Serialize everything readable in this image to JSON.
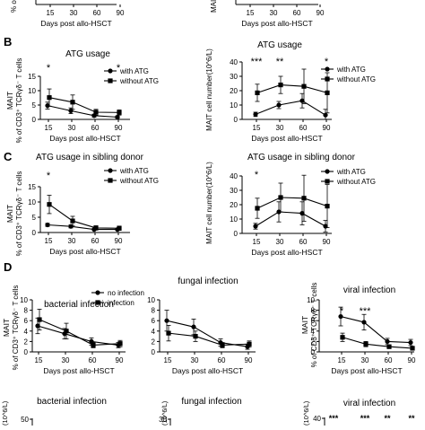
{
  "panel_labels": [
    "B",
    "C",
    "D"
  ],
  "common": {
    "x_label": "Days post allo-HSCT",
    "y_label_pct": "% of CD3⁺ TCRγδ⁻ T cells",
    "y_label_mait": "MAIT",
    "y_label_count": "MAIT cell number(10^6/L)"
  },
  "chart_data": [
    {
      "id": "top-left-partial",
      "type": "line",
      "title": "",
      "x": [
        15,
        30,
        60,
        90
      ],
      "xlabel": "Days post allo-HSCT",
      "ylabel": "% o",
      "series": []
    },
    {
      "id": "top-right-partial",
      "type": "line",
      "title": "",
      "x": [
        15,
        30,
        60,
        90
      ],
      "xlabel": "Days post allo-HSCT",
      "ylabel": "MAI",
      "series": []
    },
    {
      "id": "B-left",
      "type": "line",
      "title": "ATG usage",
      "x": [
        15,
        30,
        60,
        90
      ],
      "xlabel": "Days post allo-HSCT",
      "ylabel": "MAIT",
      "yticks": [
        0,
        5,
        10,
        15
      ],
      "ylim": [
        0,
        15
      ],
      "legend": [
        "with ATG",
        "without ATG"
      ],
      "legend_position": "top-right",
      "series": [
        {
          "name": "with ATG",
          "marker": "circle",
          "values": [
            4.8,
            3.0,
            1.3,
            0.8
          ],
          "err": [
            1.2,
            1.0,
            0.5,
            0.4
          ]
        },
        {
          "name": "without ATG",
          "marker": "square",
          "values": [
            7.6,
            6.0,
            2.5,
            2.4
          ],
          "err": [
            3.0,
            2.5,
            1.0,
            0.9
          ]
        }
      ],
      "annotations": [
        {
          "x": 15,
          "text": "*"
        },
        {
          "x": 90,
          "text": "*"
        }
      ]
    },
    {
      "id": "B-right",
      "type": "line",
      "title": "ATG usage",
      "x": [
        15,
        30,
        60,
        90
      ],
      "xlabel": "Days post allo-HSCT",
      "ylabel": "MAIT cell number(10^6/L)",
      "yticks": [
        0,
        10,
        20,
        30,
        40
      ],
      "ylim": [
        0,
        40
      ],
      "legend": [
        "with ATG",
        "without ATG"
      ],
      "legend_position": "top-right",
      "series": [
        {
          "name": "with ATG",
          "marker": "circle",
          "values": [
            3.5,
            10.0,
            13.0,
            3.0
          ],
          "err": [
            1.5,
            2.5,
            5.0,
            4.0
          ]
        },
        {
          "name": "without ATG",
          "marker": "square",
          "values": [
            18.5,
            24.0,
            23.0,
            18.5
          ],
          "err": [
            6.0,
            6.0,
            12.0,
            14.0
          ]
        }
      ],
      "annotations": [
        {
          "x": 15,
          "text": "***"
        },
        {
          "x": 30,
          "text": "**"
        },
        {
          "x": 90,
          "text": "*"
        }
      ]
    },
    {
      "id": "C-left",
      "type": "line",
      "title": "ATG usage in sibling donor",
      "x": [
        15,
        30,
        60,
        90
      ],
      "xlabel": "Days post allo-HSCT",
      "ylabel": "MAIT",
      "yticks": [
        0,
        5,
        10,
        15
      ],
      "ylim": [
        0,
        15
      ],
      "legend": [
        "with ATG",
        "without ATG"
      ],
      "legend_position": "top-right",
      "series": [
        {
          "name": "with ATG",
          "marker": "circle",
          "values": [
            2.5,
            2.0,
            1.0,
            1.0
          ],
          "err": [
            0.5,
            0.5,
            0.3,
            0.3
          ]
        },
        {
          "name": "without ATG",
          "marker": "square",
          "values": [
            9.2,
            3.8,
            1.5,
            1.4
          ],
          "err": [
            3.0,
            1.5,
            0.7,
            0.7
          ]
        }
      ],
      "annotations": [
        {
          "x": 15,
          "text": "*"
        }
      ]
    },
    {
      "id": "C-right",
      "type": "line",
      "title": "ATG usage in sibling donor",
      "x": [
        15,
        30,
        60,
        90
      ],
      "xlabel": "Days post allo-HSCT",
      "ylabel": "MAIT cell number(10^6/L)",
      "yticks": [
        0,
        10,
        20,
        30,
        40
      ],
      "ylim": [
        0,
        40
      ],
      "legend": [
        "with ATG",
        "without ATG"
      ],
      "legend_position": "top-right",
      "series": [
        {
          "name": "with ATG",
          "marker": "circle",
          "values": [
            5.0,
            15.0,
            14.0,
            5.0
          ],
          "err": [
            2.0,
            7.0,
            8.0,
            4.0
          ]
        },
        {
          "name": "without ATG",
          "marker": "square",
          "values": [
            17.5,
            25.0,
            24.5,
            19.0
          ],
          "err": [
            7.0,
            10.0,
            16.0,
            15.0
          ]
        }
      ],
      "annotations": [
        {
          "x": 15,
          "text": "*"
        }
      ]
    },
    {
      "id": "D-left",
      "type": "line",
      "title": "bacterial infection",
      "x": [
        15,
        30,
        60,
        90
      ],
      "xlabel": "Days post allo-HSCT",
      "ylabel": "MAIT",
      "yticks": [
        0,
        2,
        4,
        6,
        8,
        10
      ],
      "ylim": [
        0,
        10
      ],
      "legend": [
        "no infection",
        "infection"
      ],
      "legend_position": "top-right",
      "series": [
        {
          "name": "no infection",
          "marker": "circle",
          "values": [
            5.0,
            3.5,
            2.0,
            1.3
          ],
          "err": [
            1.5,
            1.0,
            0.7,
            0.5
          ]
        },
        {
          "name": "infection",
          "marker": "square",
          "values": [
            6.2,
            4.0,
            1.3,
            1.6
          ],
          "err": [
            2.0,
            1.5,
            0.5,
            0.6
          ]
        }
      ]
    },
    {
      "id": "D-middle",
      "type": "line",
      "title": "fungal infection",
      "x": [
        15,
        30,
        60,
        90
      ],
      "xlabel": "Days post allo-HSCT",
      "ylabel": "",
      "yticks": [
        0,
        2,
        4,
        6,
        8,
        10
      ],
      "ylim": [
        0,
        10
      ],
      "series": [
        {
          "name": "",
          "marker": "circle",
          "values": [
            6.0,
            4.8,
            1.8,
            1.0
          ],
          "err": [
            2.0,
            1.5,
            0.7,
            0.5
          ]
        },
        {
          "name": "",
          "marker": "square",
          "values": [
            3.6,
            3.0,
            1.3,
            1.5
          ],
          "err": [
            1.5,
            1.0,
            0.5,
            0.6
          ]
        }
      ]
    },
    {
      "id": "D-right",
      "type": "line",
      "title": "viral infection",
      "x": [
        15,
        30,
        60,
        90
      ],
      "xlabel": "Days post allo-HSCT",
      "ylabel": "MAIT",
      "yticks": [
        0,
        2,
        4,
        6,
        8,
        10
      ],
      "ylim": [
        0,
        10
      ],
      "series": [
        {
          "name": "",
          "marker": "circle",
          "values": [
            6.8,
            5.7,
            2.0,
            1.8
          ],
          "err": [
            1.8,
            1.5,
            0.6,
            0.6
          ]
        },
        {
          "name": "",
          "marker": "square",
          "values": [
            2.8,
            1.5,
            1.0,
            0.7
          ],
          "err": [
            0.8,
            0.5,
            0.3,
            0.3
          ]
        }
      ],
      "annotations": [
        {
          "x": 15,
          "text": "*"
        },
        {
          "x": 30,
          "text": "***"
        }
      ]
    },
    {
      "id": "E-left-partial",
      "type": "line",
      "title": "bacterial infection",
      "ylabel": "(10^6/L)",
      "yticks": [
        50
      ],
      "series": []
    },
    {
      "id": "E-middle-partial",
      "type": "line",
      "title": "fungal infection",
      "ylabel": "(10^6/L)",
      "yticks": [
        30
      ],
      "series": []
    },
    {
      "id": "E-right-partial",
      "type": "line",
      "title": "viral infection",
      "ylabel": "(10^6/L)",
      "yticks": [
        40
      ],
      "series": [],
      "annotations": [
        {
          "x": 15,
          "text": "***"
        },
        {
          "x": 30,
          "text": "***"
        },
        {
          "x": 60,
          "text": "**"
        },
        {
          "x": 90,
          "text": "**"
        }
      ]
    }
  ]
}
